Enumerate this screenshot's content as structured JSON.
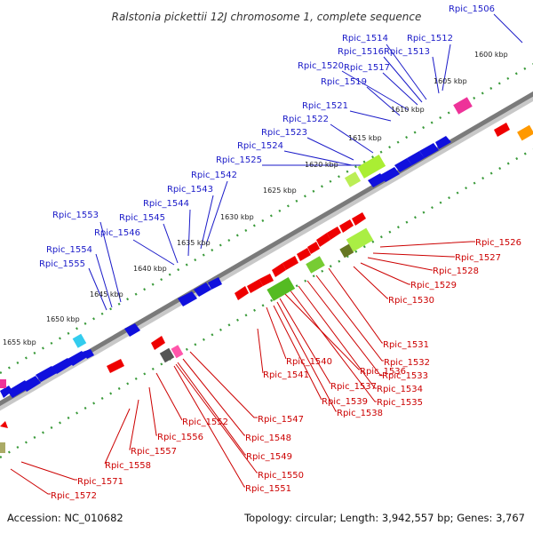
{
  "title": "Ralstonia pickettii 12J chromosome 1, complete sequence",
  "footer": {
    "accession": "Accession: NC_010682",
    "topology": "Topology: circular; Length: 3,942,557 bp; Genes: 3,767"
  },
  "colors": {
    "top_strand_label": "#1a1ac8",
    "bottom_strand_label": "#cc0000",
    "tick": "#2e8b2e",
    "axis": "#888888"
  },
  "kbp_labels": [
    "1600 kbp",
    "1605 kbp",
    "1610 kbp",
    "1615 kbp",
    "1620 kbp",
    "1625 kbp",
    "1630 kbp",
    "1635 kbp",
    "1640 kbp",
    "1645 kbp",
    "1650 kbp",
    "1655 kbp"
  ],
  "top_genes": [
    "Rpic_1506",
    "Rpic_1512",
    "Rpic_1513",
    "Rpic_1514",
    "Rpic_1516",
    "Rpic_1517",
    "Rpic_1519",
    "Rpic_1520",
    "Rpic_1521",
    "Rpic_1522",
    "Rpic_1523",
    "Rpic_1524",
    "Rpic_1525",
    "Rpic_1542",
    "Rpic_1543",
    "Rpic_1544",
    "Rpic_1545",
    "Rpic_1546",
    "Rpic_1553",
    "Rpic_1554",
    "Rpic_1555"
  ],
  "bottom_genes": [
    "Rpic_1526",
    "Rpic_1527",
    "Rpic_1528",
    "Rpic_1529",
    "Rpic_1530",
    "Rpic_1531",
    "Rpic_1532",
    "Rpic_1533",
    "Rpic_1534",
    "Rpic_1535",
    "Rpic_1536",
    "Rpic_1537",
    "Rpic_1538",
    "Rpic_1539",
    "Rpic_1540",
    "Rpic_1541",
    "Rpic_1547",
    "Rpic_1548",
    "Rpic_1549",
    "Rpic_1550",
    "Rpic_1551",
    "Rpic_1552",
    "Rpic_1556",
    "Rpic_1557",
    "Rpic_1558",
    "Rpic_1571",
    "Rpic_1572"
  ]
}
